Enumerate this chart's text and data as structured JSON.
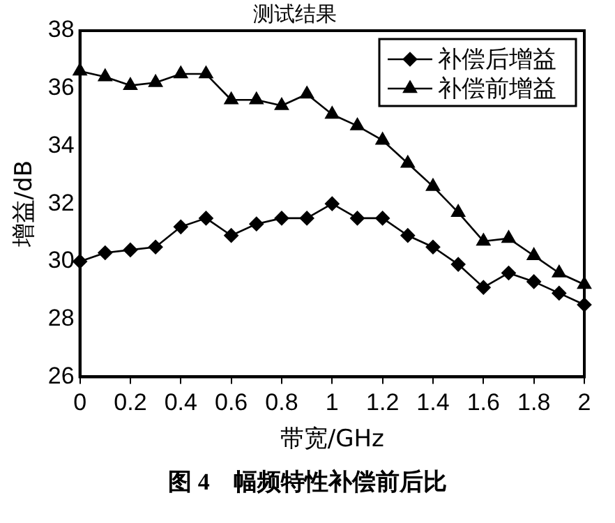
{
  "chart_data": {
    "type": "line",
    "title": "测试结果",
    "xlabel": "带宽/GHz",
    "ylabel": "增益/dB",
    "x": [
      0,
      0.1,
      0.2,
      0.3,
      0.4,
      0.5,
      0.6,
      0.7,
      0.8,
      0.9,
      1,
      1.1,
      1.2,
      1.3,
      1.4,
      1.5,
      1.6,
      1.7,
      1.8,
      1.9,
      2
    ],
    "series": [
      {
        "name": "补偿后增益",
        "color": "#000000",
        "marker": "diamond",
        "values": [
          30.0,
          30.3,
          30.4,
          30.5,
          31.2,
          31.5,
          30.9,
          31.3,
          31.5,
          31.5,
          32.0,
          31.5,
          31.5,
          30.9,
          30.5,
          29.9,
          29.1,
          29.6,
          29.3,
          28.9,
          28.5
        ]
      },
      {
        "name": "补偿前增益",
        "color": "#000000",
        "marker": "triangle",
        "values": [
          36.6,
          36.4,
          36.1,
          36.2,
          36.5,
          36.5,
          35.6,
          35.6,
          35.4,
          35.8,
          35.1,
          34.7,
          34.2,
          33.4,
          32.6,
          31.7,
          30.7,
          30.8,
          30.2,
          29.6,
          29.2
        ]
      }
    ],
    "xlim": [
      0,
      2
    ],
    "xticks": [
      0,
      0.2,
      0.4,
      0.6,
      0.8,
      1,
      1.2,
      1.4,
      1.6,
      1.8,
      2
    ],
    "ylim": [
      26,
      38
    ],
    "yticks": [
      26,
      28,
      30,
      32,
      34,
      36,
      38
    ],
    "grid": false,
    "legend": "top right",
    "annotations": [
      "图 4　幅频特性补偿前后比"
    ]
  }
}
